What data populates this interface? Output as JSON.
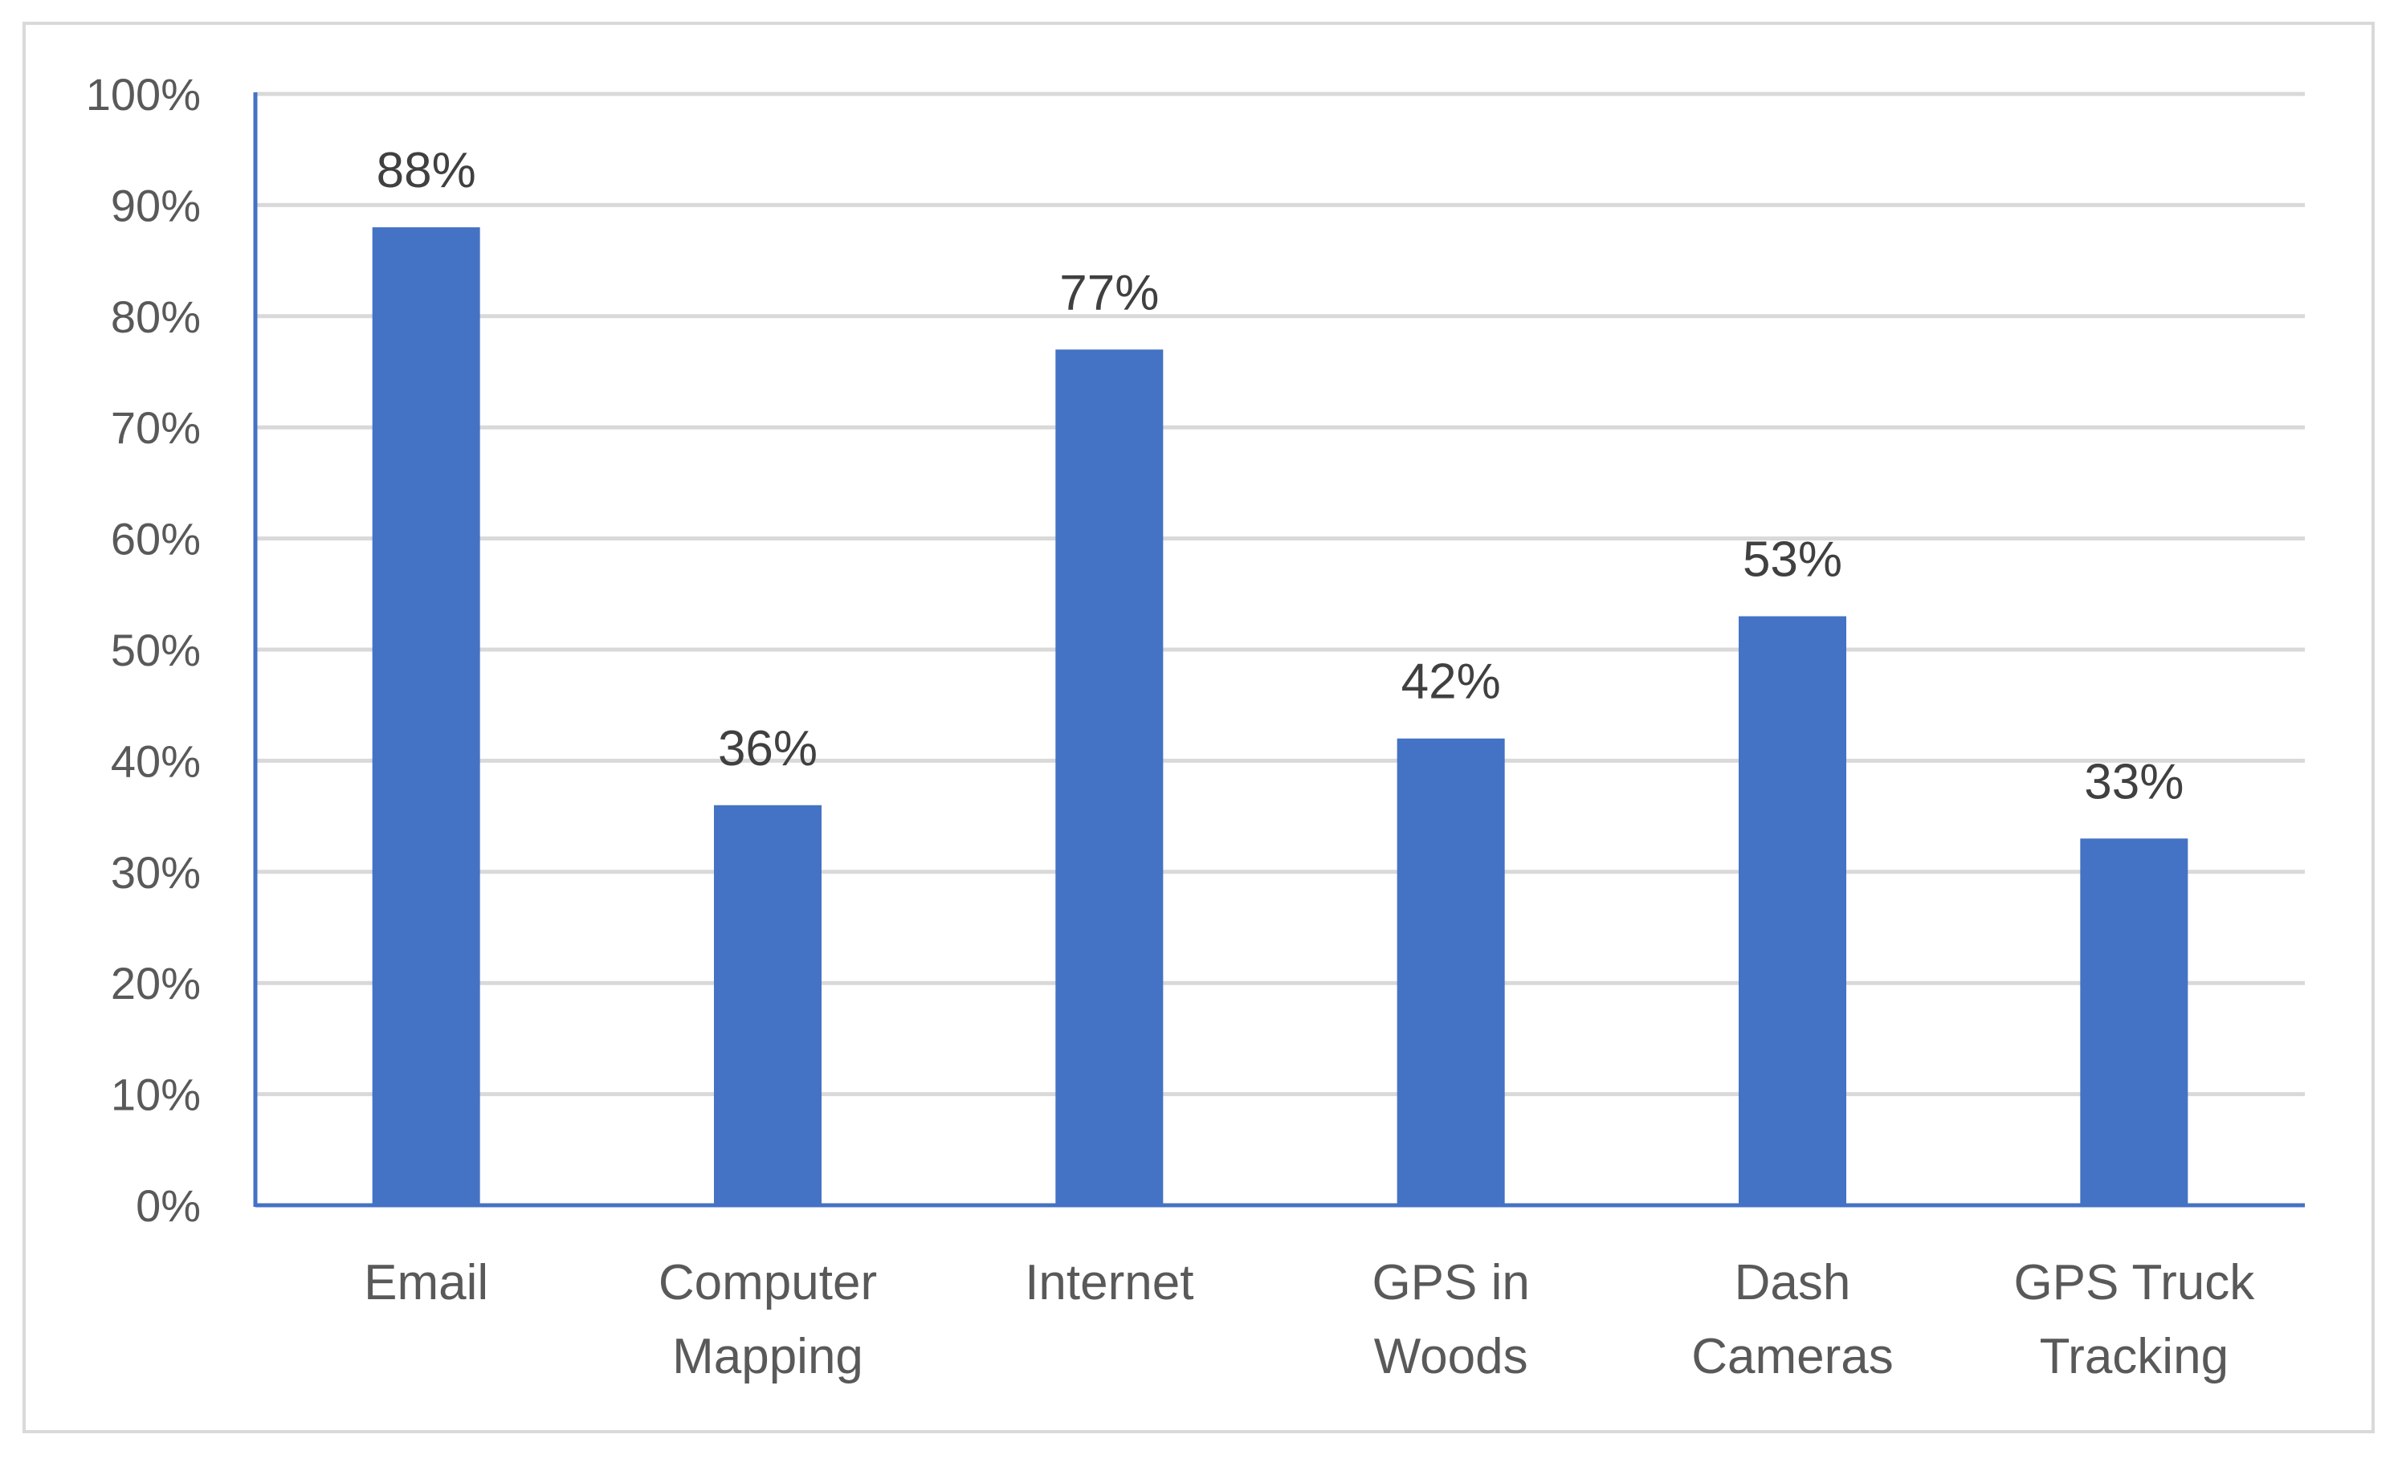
{
  "chart_data": {
    "type": "bar",
    "categories": [
      "Email",
      "Computer Mapping",
      "Internet",
      "GPS in Woods",
      "Dash Cameras",
      "GPS Truck Tracking"
    ],
    "category_lines": [
      [
        "Email"
      ],
      [
        "Computer",
        "Mapping"
      ],
      [
        "Internet"
      ],
      [
        "GPS in",
        "Woods"
      ],
      [
        "Dash",
        "Cameras"
      ],
      [
        "GPS Truck",
        "Tracking"
      ]
    ],
    "values": [
      88,
      36,
      77,
      42,
      53,
      33
    ],
    "data_labels": [
      "88%",
      "36%",
      "77%",
      "42%",
      "53%",
      "33%"
    ],
    "yticks": [
      "0%",
      "10%",
      "20%",
      "30%",
      "40%",
      "50%",
      "60%",
      "70%",
      "80%",
      "90%",
      "100%"
    ],
    "ylim": [
      0,
      100
    ],
    "title": "",
    "xlabel": "",
    "ylabel": "",
    "grid": true,
    "legend": "none",
    "colors": {
      "bar": "#4472c4",
      "axis": "#4472c4",
      "grid": "#d9d9d9",
      "frame": "#d9d9d9"
    }
  }
}
